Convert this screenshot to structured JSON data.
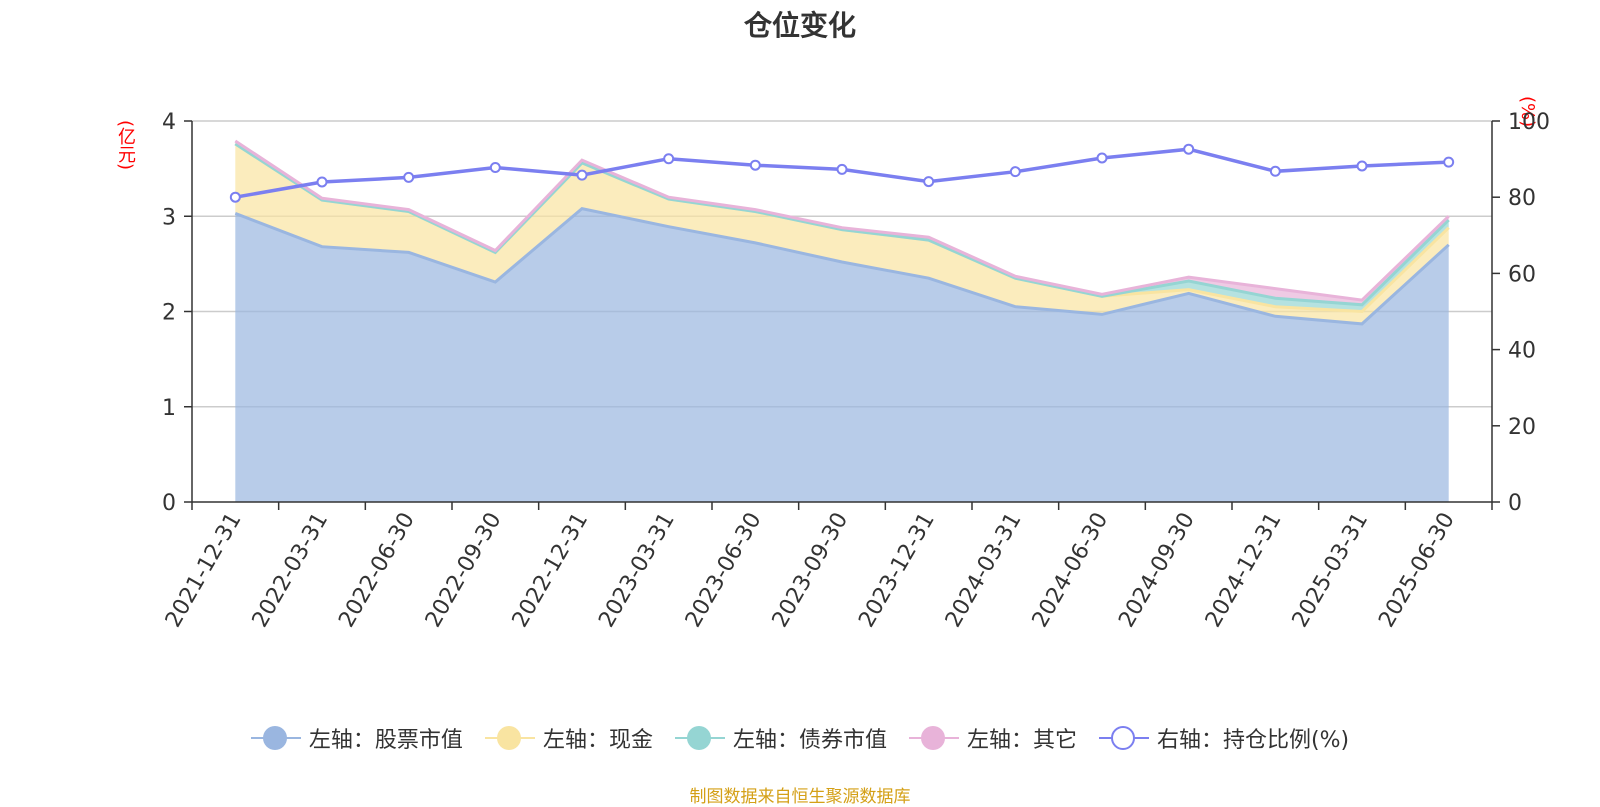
{
  "chart_data": {
    "type": "area",
    "title": "仓位变化",
    "left_axis_unit": "(亿元)",
    "right_axis_unit": "(%)",
    "x": [
      "2021-12-31",
      "2022-03-31",
      "2022-06-30",
      "2022-09-30",
      "2022-12-31",
      "2023-03-31",
      "2023-06-30",
      "2023-09-30",
      "2023-12-31",
      "2024-03-31",
      "2024-06-30",
      "2024-09-30",
      "2024-12-31",
      "2025-03-31",
      "2025-06-30"
    ],
    "left_ylim": [
      0,
      4
    ],
    "left_ticks": [
      "0",
      "1",
      "2",
      "3",
      "4"
    ],
    "right_ylim": [
      0,
      100
    ],
    "right_ticks": [
      "0",
      "20",
      "40",
      "60",
      "80",
      "100"
    ],
    "grid": true,
    "stacked": true,
    "series": [
      {
        "name": "左轴：股票市值",
        "axis": "left",
        "kind": "area",
        "color": "#9ab6e0",
        "values": [
          3.03,
          2.68,
          2.62,
          2.31,
          3.08,
          2.89,
          2.72,
          2.52,
          2.35,
          2.05,
          1.97,
          2.19,
          1.95,
          1.87,
          2.7
        ]
      },
      {
        "name": "左轴：现金",
        "axis": "left",
        "kind": "area",
        "color": "#f9e4a1",
        "values": [
          0.73,
          0.49,
          0.43,
          0.31,
          0.48,
          0.29,
          0.33,
          0.34,
          0.4,
          0.3,
          0.19,
          0.04,
          0.1,
          0.13,
          0.18
        ]
      },
      {
        "name": "左轴：债券市值",
        "axis": "left",
        "kind": "area",
        "color": "#95d5d3",
        "values": [
          0,
          0,
          0,
          0,
          0,
          0,
          0,
          0,
          0,
          0,
          0,
          0.09,
          0.09,
          0.07,
          0.08
        ]
      },
      {
        "name": "左轴：其它",
        "axis": "left",
        "kind": "area",
        "color": "#e8b3d9",
        "values": [
          0.03,
          0.02,
          0.02,
          0.02,
          0.03,
          0.02,
          0.02,
          0.02,
          0.03,
          0.02,
          0.02,
          0.04,
          0.1,
          0.05,
          0.04
        ]
      },
      {
        "name": "右轴：持仓比例(%)",
        "axis": "right",
        "kind": "line",
        "color": "#7b7ff0",
        "values": [
          80.0,
          84.0,
          85.2,
          87.8,
          85.8,
          90.1,
          88.4,
          87.3,
          84.1,
          86.7,
          90.3,
          92.6,
          86.8,
          88.2,
          89.2
        ]
      }
    ]
  },
  "source_note": "制图数据来自恒生聚源数据库"
}
